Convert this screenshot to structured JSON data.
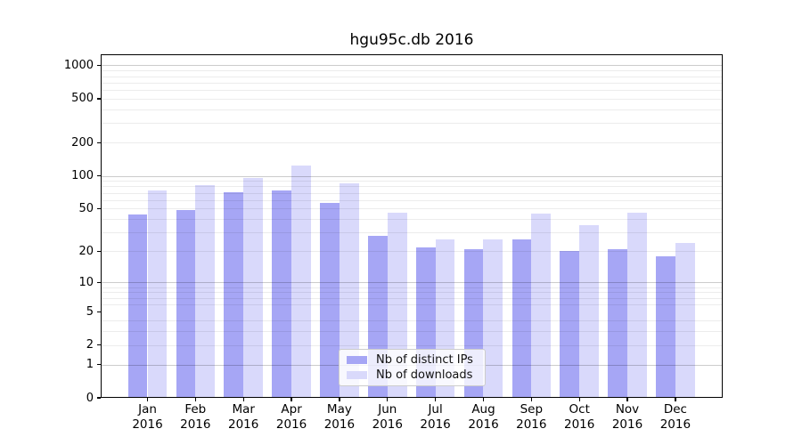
{
  "figure": {
    "background": "#ffffff"
  },
  "chart_data": {
    "type": "bar",
    "title": "hgu95c.db 2016",
    "categories": [
      "Jan",
      "Feb",
      "Mar",
      "Apr",
      "May",
      "Jun",
      "Jul",
      "Aug",
      "Sep",
      "Oct",
      "Nov",
      "Dec"
    ],
    "category_year": "2016",
    "series": [
      {
        "name": "Nb of distinct IPs",
        "color": "#a6a6f5",
        "values": [
          44,
          49,
          71,
          73,
          56,
          28,
          22,
          21,
          26,
          20,
          21,
          18
        ]
      },
      {
        "name": "Nb of downloads",
        "color": "#d9d9fb",
        "values": [
          74,
          82,
          96,
          125,
          86,
          46,
          26,
          26,
          45,
          35,
          46,
          24
        ]
      }
    ],
    "xlabel": "",
    "ylabel": "",
    "y_scale": "log10(1+y)",
    "ylim": [
      0,
      1260
    ],
    "y_tick_labels": [
      "1000",
      "500",
      "200",
      "100",
      "50",
      "20",
      "10",
      "5",
      "2",
      "1",
      "0"
    ],
    "y_tick_values": [
      1000,
      500,
      200,
      100,
      50,
      20,
      10,
      5,
      2,
      1,
      0
    ],
    "y_major_gridlines": [
      1,
      10,
      100,
      1000
    ],
    "y_minor_gridlines": [
      2,
      3,
      4,
      6,
      7,
      8,
      9,
      20,
      30,
      40,
      50,
      60,
      70,
      80,
      90,
      200,
      300,
      400,
      500,
      600,
      700,
      800,
      900
    ],
    "grid": true,
    "legend_position": "lower center"
  }
}
